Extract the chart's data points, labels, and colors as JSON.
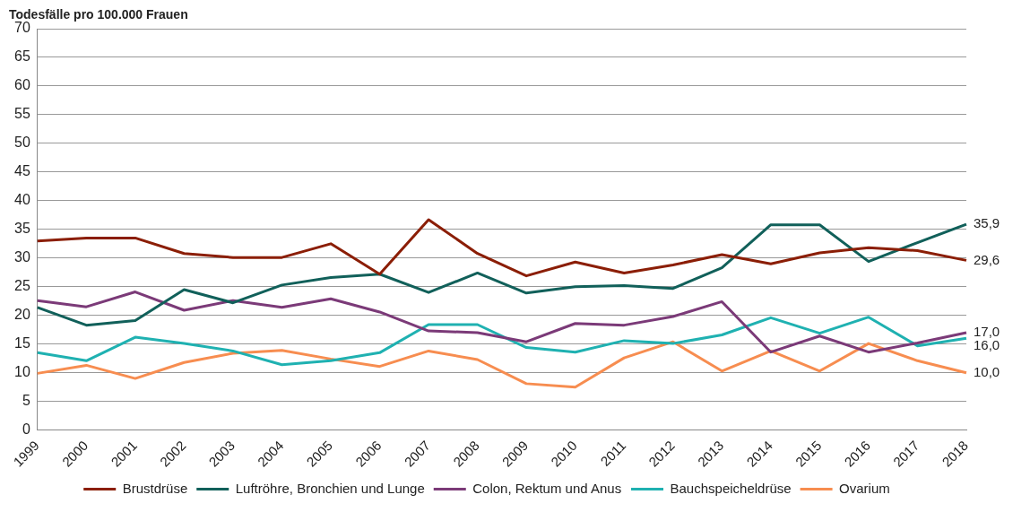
{
  "chart_data": {
    "type": "line",
    "ylabel": "Todesfälle pro 100.000 Frauen",
    "categories": [
      "1999",
      "2000",
      "2001",
      "2002",
      "2003",
      "2004",
      "2005",
      "2006",
      "2007",
      "2008",
      "2009",
      "2010",
      "2011",
      "2012",
      "2013",
      "2014",
      "2015",
      "2016",
      "2017",
      "2018"
    ],
    "series": [
      {
        "name": "Brustdrüse",
        "color": "#8b1e06",
        "values": [
          33.0,
          33.5,
          33.5,
          30.8,
          30.1,
          30.1,
          32.5,
          27.2,
          36.7,
          30.8,
          26.9,
          29.3,
          27.4,
          28.8,
          30.6,
          29.0,
          30.9,
          31.8,
          31.3,
          29.6
        ],
        "value_labels": [
          null,
          null,
          null,
          null,
          null,
          null,
          null,
          null,
          null,
          null,
          null,
          null,
          null,
          null,
          null,
          null,
          null,
          null,
          null,
          "29,6"
        ]
      },
      {
        "name": "Luftröhre, Bronchien und Lunge",
        "color": "#11605a",
        "values": [
          21.4,
          18.3,
          19.1,
          24.5,
          22.2,
          25.3,
          26.6,
          27.2,
          24.0,
          27.4,
          23.9,
          25.0,
          25.2,
          24.7,
          28.3,
          35.8,
          35.8,
          29.4,
          32.7,
          35.9
        ],
        "value_labels": [
          null,
          null,
          null,
          null,
          null,
          null,
          null,
          null,
          null,
          null,
          null,
          null,
          null,
          null,
          null,
          null,
          null,
          null,
          null,
          "35,9"
        ]
      },
      {
        "name": "Colon, Rektum und Anus",
        "color": "#7b3a78",
        "values": [
          22.6,
          21.5,
          24.1,
          20.9,
          22.6,
          21.4,
          22.9,
          20.6,
          17.3,
          17.0,
          15.4,
          18.6,
          18.3,
          19.8,
          22.4,
          13.6,
          16.4,
          13.6,
          15.2,
          17.0
        ],
        "value_labels": [
          null,
          null,
          null,
          null,
          null,
          null,
          null,
          null,
          null,
          null,
          null,
          null,
          null,
          null,
          null,
          null,
          null,
          null,
          null,
          "17,0"
        ]
      },
      {
        "name": "Bauchspeicheldrüse",
        "color": "#1fb1b1",
        "values": [
          13.5,
          12.1,
          16.2,
          15.1,
          13.8,
          11.4,
          12.1,
          13.5,
          18.4,
          18.4,
          14.4,
          13.6,
          15.6,
          15.1,
          16.6,
          19.6,
          16.9,
          19.7,
          14.7,
          16.0
        ],
        "value_labels": [
          null,
          null,
          null,
          null,
          null,
          null,
          null,
          null,
          null,
          null,
          null,
          null,
          null,
          null,
          null,
          null,
          null,
          null,
          null,
          "16,0"
        ]
      },
      {
        "name": "Ovarium",
        "color": "#f78d50",
        "values": [
          9.9,
          11.3,
          9.0,
          11.8,
          13.4,
          13.9,
          12.4,
          11.1,
          13.8,
          12.3,
          8.1,
          7.5,
          12.6,
          15.4,
          10.3,
          13.8,
          10.3,
          15.1,
          12.1,
          10.0
        ],
        "value_labels": [
          null,
          null,
          null,
          null,
          null,
          null,
          null,
          null,
          null,
          null,
          null,
          null,
          null,
          null,
          null,
          null,
          null,
          null,
          null,
          "10,0"
        ]
      }
    ],
    "ylim": [
      0,
      70
    ],
    "yticks": [
      0,
      5,
      10,
      15,
      20,
      25,
      30,
      35,
      40,
      45,
      50,
      55,
      60,
      65,
      70
    ],
    "grid": "y",
    "legend": "bottom",
    "marker": "none",
    "line_style": "solid"
  }
}
